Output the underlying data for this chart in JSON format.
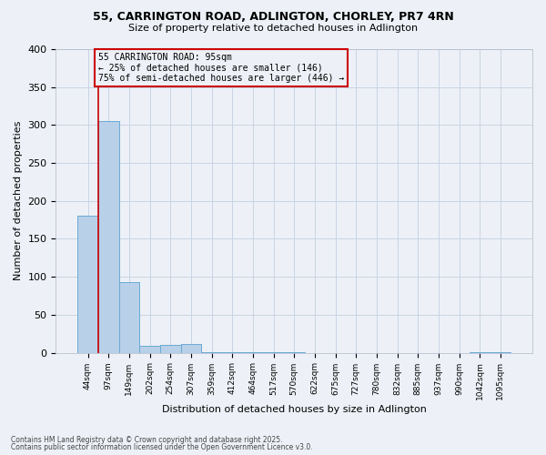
{
  "title1": "55, CARRINGTON ROAD, ADLINGTON, CHORLEY, PR7 4RN",
  "title2": "Size of property relative to detached houses in Adlington",
  "xlabel": "Distribution of detached houses by size in Adlington",
  "ylabel": "Number of detached properties",
  "categories": [
    "44sqm",
    "97sqm",
    "149sqm",
    "202sqm",
    "254sqm",
    "307sqm",
    "359sqm",
    "412sqm",
    "464sqm",
    "517sqm",
    "570sqm",
    "622sqm",
    "675sqm",
    "727sqm",
    "780sqm",
    "832sqm",
    "885sqm",
    "937sqm",
    "990sqm",
    "1042sqm",
    "1095sqm"
  ],
  "values": [
    180,
    305,
    93,
    9,
    10,
    11,
    1,
    1,
    1,
    1,
    1,
    0,
    0,
    0,
    0,
    0,
    0,
    0,
    0,
    1,
    1
  ],
  "bar_color": "#b8d0e8",
  "bar_edge_color": "#6aaad4",
  "grid_color": "#c8d4e4",
  "bg_color": "#edf1f7",
  "vline_x": 0.5,
  "vline_color": "#cc0000",
  "annotation_text": "55 CARRINGTON ROAD: 95sqm\n← 25% of detached houses are smaller (146)\n75% of semi-detached houses are larger (446) →",
  "annotation_box_color": "#cc0000",
  "footnote1": "Contains HM Land Registry data © Crown copyright and database right 2025.",
  "footnote2": "Contains public sector information licensed under the Open Government Licence v3.0.",
  "ylim": [
    0,
    400
  ],
  "yticks": [
    0,
    50,
    100,
    150,
    200,
    250,
    300,
    350,
    400
  ]
}
